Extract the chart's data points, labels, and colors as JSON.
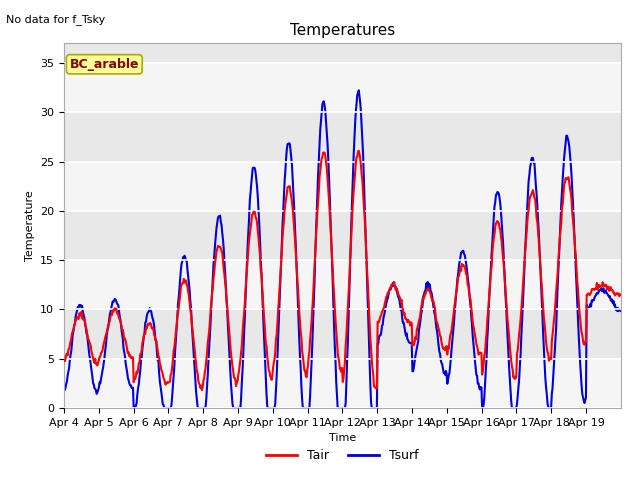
{
  "title": "Temperatures",
  "xlabel": "Time",
  "ylabel": "Temperature",
  "annotation_text": "No data for f_Tsky",
  "legend_label": "BC_arable",
  "ylim": [
    0,
    37
  ],
  "yticks": [
    0,
    5,
    10,
    15,
    20,
    25,
    30,
    35
  ],
  "x_tick_labels": [
    "Apr 4",
    "Apr 5",
    "Apr 6",
    "Apr 7",
    "Apr 8",
    "Apr 9",
    "Apr 10",
    "Apr 11",
    "Apr 12",
    "Apr 13",
    "Apr 14",
    "Apr 15",
    "Apr 16",
    "Apr 17",
    "Apr 18",
    "Apr 19"
  ],
  "tair_color": "#ff0000",
  "tsurf_color": "#0000dd",
  "plot_bg_color": "#e8e8e8",
  "white_band_color": "#f5f5f5",
  "legend_box_facecolor": "#ffff99",
  "legend_box_edgecolor": "#aaaa00",
  "legend_text_color": "#8b0000",
  "title_fontsize": 11,
  "axis_label_fontsize": 8,
  "tick_fontsize": 8,
  "annotation_fontsize": 8,
  "legend_fontsize": 9,
  "shaded_band_low": 20,
  "shaded_band_high": 30,
  "tair_lw": 1.5,
  "tsurf_lw": 1.5,
  "day_bases_air": [
    7.0,
    7.5,
    5.5,
    7.5,
    9.5,
    11.5,
    13.0,
    15.0,
    14.0,
    10.5,
    9.0,
    10.0,
    11.0,
    13.5,
    15.0,
    12.0
  ],
  "day_amps_air": [
    2.5,
    2.5,
    3.0,
    5.5,
    7.0,
    8.5,
    9.5,
    11.0,
    12.0,
    2.0,
    3.0,
    4.5,
    8.0,
    8.5,
    8.5,
    0.5
  ],
  "day_bases_surf": [
    6.0,
    6.5,
    4.5,
    6.5,
    8.5,
    10.5,
    12.0,
    14.0,
    13.0,
    9.5,
    8.0,
    9.0,
    10.0,
    12.5,
    14.0,
    11.0
  ],
  "day_amps_surf": [
    4.5,
    4.5,
    5.5,
    9.0,
    11.0,
    14.0,
    15.0,
    17.0,
    19.0,
    3.0,
    4.5,
    7.0,
    12.0,
    13.0,
    13.5,
    1.0
  ]
}
